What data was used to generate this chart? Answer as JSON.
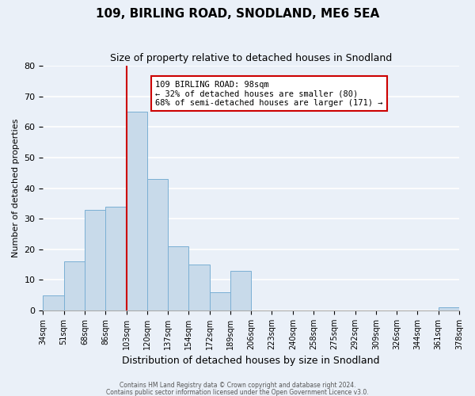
{
  "title": "109, BIRLING ROAD, SNODLAND, ME6 5EA",
  "subtitle": "Size of property relative to detached houses in Snodland",
  "xlabel": "Distribution of detached houses by size in Snodland",
  "ylabel": "Number of detached properties",
  "bar_color": "#c8daea",
  "bar_edge_color": "#7aafd4",
  "background_color": "#eaf0f8",
  "grid_color": "#ffffff",
  "bin_labels": [
    "34sqm",
    "51sqm",
    "68sqm",
    "86sqm",
    "103sqm",
    "120sqm",
    "137sqm",
    "154sqm",
    "172sqm",
    "189sqm",
    "206sqm",
    "223sqm",
    "240sqm",
    "258sqm",
    "275sqm",
    "292sqm",
    "309sqm",
    "326sqm",
    "344sqm",
    "361sqm",
    "378sqm"
  ],
  "bar_heights": [
    5,
    16,
    33,
    34,
    65,
    43,
    21,
    15,
    6,
    13,
    0,
    0,
    0,
    0,
    0,
    0,
    0,
    0,
    0,
    1
  ],
  "ylim": [
    0,
    80
  ],
  "yticks": [
    0,
    10,
    20,
    30,
    40,
    50,
    60,
    70,
    80
  ],
  "vline_x": 4,
  "vline_color": "#cc0000",
  "annotation_title": "109 BIRLING ROAD: 98sqm",
  "annotation_line1": "← 32% of detached houses are smaller (80)",
  "annotation_line2": "68% of semi-detached houses are larger (171) →",
  "annotation_box_color": "#ffffff",
  "annotation_box_edge": "#cc0000",
  "footer1": "Contains HM Land Registry data © Crown copyright and database right 2024.",
  "footer2": "Contains public sector information licensed under the Open Government Licence v3.0."
}
